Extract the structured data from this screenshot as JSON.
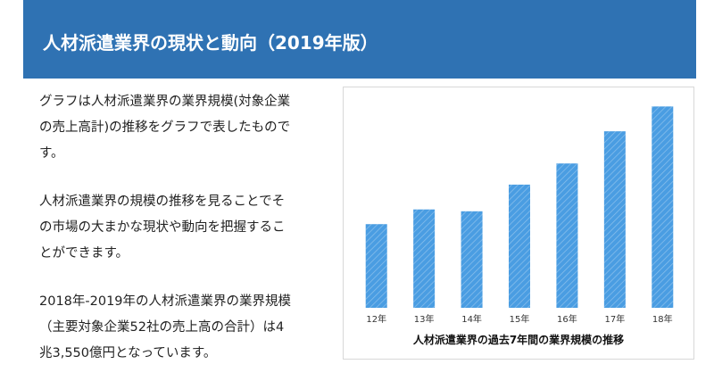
{
  "header": {
    "title": "人材派遣業界の現状と動向（2019年版）"
  },
  "paragraphs": [
    {
      "lines": [
        "グラフは人材派遣業界の業界規模(対象企業",
        "の売上高計)の推移をグラフで表したもので",
        "す。"
      ]
    },
    {
      "lines": [
        "人材派遣業界の規模の推移を見ることでそ",
        "の市場の大まかな現状や動向を把握するこ",
        "とができます。"
      ]
    },
    {
      "lines": [
        "2018年-2019年の人材派遣業界の業界規模",
        "（主要対象企業52社の売上高の合計）は4",
        "兆3,550億円となっています。"
      ]
    }
  ],
  "chart_data": {
    "type": "bar",
    "title": "人材派遣業界の過去7年間の業界規模の推移",
    "categories": [
      "12年",
      "13年",
      "14年",
      "15年",
      "16年",
      "17年",
      "18年"
    ],
    "values": [
      91,
      107,
      105,
      134,
      157,
      192,
      219
    ],
    "ylim": [
      0,
      230
    ],
    "color": "#4a9de2"
  }
}
